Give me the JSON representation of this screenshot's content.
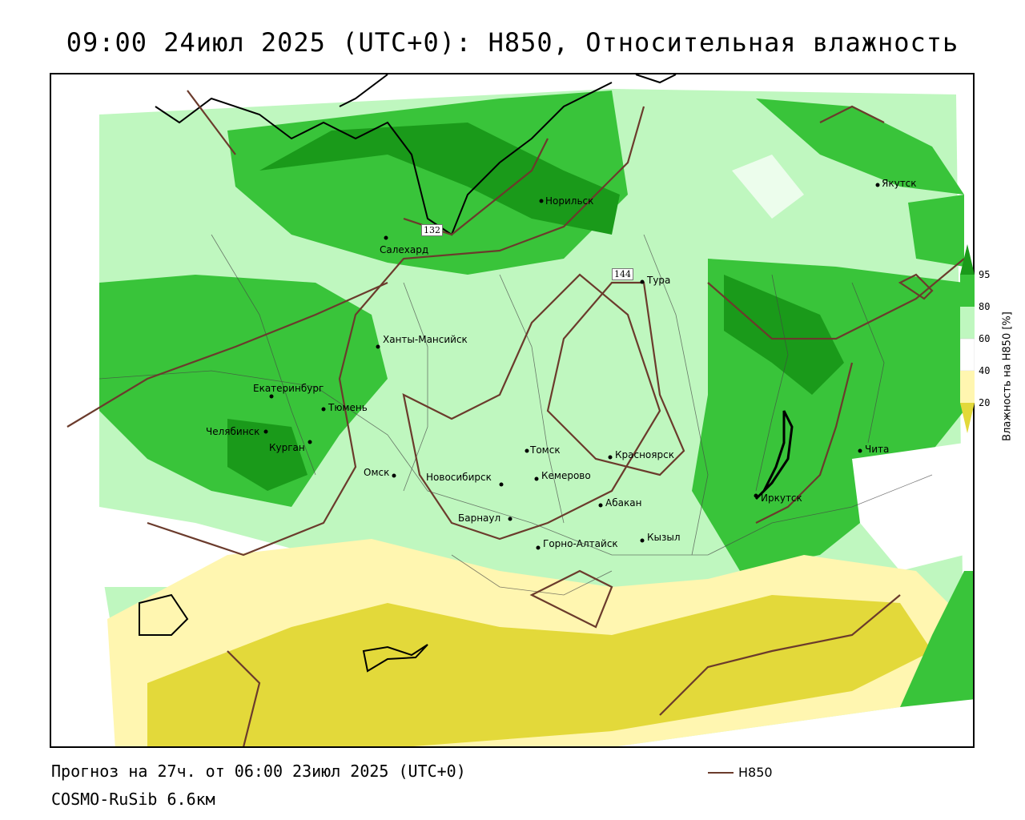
{
  "title": "09:00 24июл 2025 (UTC+0): H850, Относительная влажность",
  "footer": {
    "forecast": "Прогноз на 27ч. от 06:00 23июл 2025 (UTC+0)",
    "model": "COSMO-RuSib 6.6км",
    "contour_legend": "H850"
  },
  "legend": {
    "title": "Влажность на H850 [%]",
    "ticks": [
      "95",
      "80",
      "60",
      "40",
      "20"
    ],
    "colors": {
      "c95": "#1a9a1a",
      "c80": "#39c43a",
      "c60": "#bff7bf",
      "c40": "#ffffff",
      "c20": "#fff6b0",
      "c0": "#e3d93a"
    }
  },
  "contour_labels": [
    "132",
    "144"
  ],
  "cities": [
    {
      "name": "Норильск"
    },
    {
      "name": "Якутск"
    },
    {
      "name": "Салехард"
    },
    {
      "name": "Тура"
    },
    {
      "name": "Ханты-Мансийск"
    },
    {
      "name": "Екатеринбург"
    },
    {
      "name": "Тюмень"
    },
    {
      "name": "Челябинск"
    },
    {
      "name": "Курган"
    },
    {
      "name": "Омск"
    },
    {
      "name": "Новосибирск"
    },
    {
      "name": "Томск"
    },
    {
      "name": "Кемерово"
    },
    {
      "name": "Красноярск"
    },
    {
      "name": "Абакан"
    },
    {
      "name": "Барнаул"
    },
    {
      "name": "Горно-Алтайск"
    },
    {
      "name": "Кызыл"
    },
    {
      "name": "Иркутск"
    },
    {
      "name": "Чита"
    }
  ],
  "colors": {
    "contour": "#6b3b2c",
    "coast": "#000000",
    "border": "#444444"
  }
}
